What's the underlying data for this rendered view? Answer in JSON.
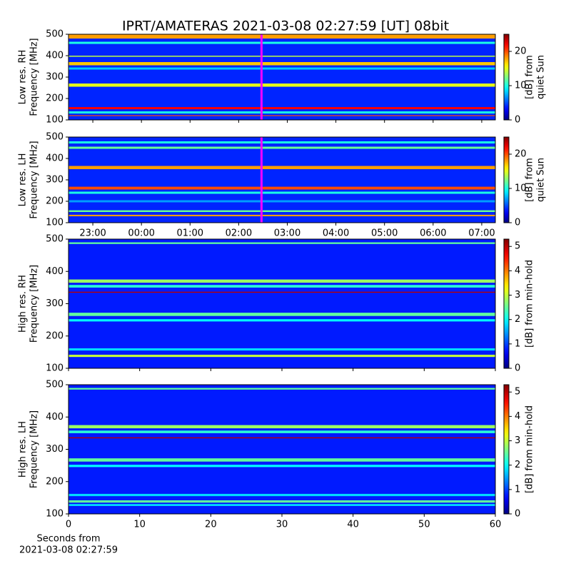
{
  "title": "IPRT/AMATERAS 2021-03-08 02:27:59 [UT]   08bit",
  "chart_data": [
    {
      "type": "heatmap",
      "ylabel": [
        "Low res. RH",
        "Frequency [MHz]"
      ],
      "ylim": [
        100,
        500
      ],
      "yticks": [
        100,
        200,
        300,
        400,
        500
      ],
      "xlim": [
        22.5,
        31.28
      ],
      "xticks": [
        23,
        24,
        25,
        26,
        27,
        28,
        29,
        30,
        31
      ],
      "marker_x": 26.47,
      "marker_color": "#ff00ff",
      "background_value": 4,
      "bands": [
        {
          "y": [
            480,
            500
          ],
          "value": 18
        },
        {
          "y": [
            455,
            465
          ],
          "value": 10
        },
        {
          "y": [
            395,
            400
          ],
          "value": 14
        },
        {
          "y": [
            355,
            370
          ],
          "value": 17
        },
        {
          "y": [
            335,
            345
          ],
          "value": 8
        },
        {
          "y": [
            255,
            270
          ],
          "value": 15
        },
        {
          "y": [
            150,
            160
          ],
          "value": 22
        },
        {
          "y": [
            130,
            140
          ],
          "value": 10
        },
        {
          "y": [
            118,
            122
          ],
          "value": 20
        }
      ],
      "clim": [
        0,
        25
      ],
      "cticks": [
        0,
        10,
        20
      ],
      "clabel": [
        "[dB] from",
        "quiet Sun"
      ]
    },
    {
      "type": "heatmap",
      "ylabel": [
        "Low res. LH",
        "Frequency [MHz]"
      ],
      "ylim": [
        100,
        500
      ],
      "yticks": [
        100,
        200,
        300,
        400,
        500
      ],
      "xlim": [
        22.5,
        31.28
      ],
      "xticks": [
        {
          "value": 23,
          "label": "23:00"
        },
        {
          "value": 24,
          "label": "00:00"
        },
        {
          "value": 25,
          "label": "01:00"
        },
        {
          "value": 26,
          "label": "02:00"
        },
        {
          "value": 27,
          "label": "03:00"
        },
        {
          "value": 28,
          "label": "04:00"
        },
        {
          "value": 29,
          "label": "05:00"
        },
        {
          "value": 30,
          "label": "06:00"
        },
        {
          "value": 31,
          "label": "07:00"
        }
      ],
      "marker_x": 26.47,
      "marker_color": "#ff00ff",
      "background_value": 4,
      "bands": [
        {
          "y": [
            470,
            480
          ],
          "value": 10
        },
        {
          "y": [
            445,
            455
          ],
          "value": 12
        },
        {
          "y": [
            350,
            365
          ],
          "value": 18
        },
        {
          "y": [
            255,
            268
          ],
          "value": 20
        },
        {
          "y": [
            235,
            245
          ],
          "value": 10
        },
        {
          "y": [
            195,
            205
          ],
          "value": 7
        },
        {
          "y": [
            150,
            158
          ],
          "value": 12
        },
        {
          "y": [
            130,
            137
          ],
          "value": 18
        }
      ],
      "clim": [
        0,
        25
      ],
      "cticks": [
        0,
        10,
        20
      ],
      "clabel": [
        "[dB] from",
        "quiet Sun"
      ]
    },
    {
      "type": "heatmap",
      "ylabel": [
        "High res. RH",
        "Frequency [MHz]"
      ],
      "ylim": [
        100,
        500
      ],
      "yticks": [
        100,
        200,
        300,
        400,
        500
      ],
      "xlim": [
        0,
        60
      ],
      "xticks": [
        0,
        10,
        20,
        30,
        40,
        50,
        60
      ],
      "background_value": 0.8,
      "bands": [
        {
          "y": [
            485,
            490
          ],
          "value": 2.5
        },
        {
          "y": [
            365,
            375
          ],
          "value": 2.8
        },
        {
          "y": [
            350,
            358
          ],
          "value": 2.2
        },
        {
          "y": [
            334,
            337
          ],
          "value": 5
        },
        {
          "y": [
            262,
            272
          ],
          "value": 2.5
        },
        {
          "y": [
            245,
            252
          ],
          "value": 2
        },
        {
          "y": [
            155,
            162
          ],
          "value": 1.8
        },
        {
          "y": [
            135,
            142
          ],
          "value": 3
        }
      ],
      "clim": [
        0,
        5.3
      ],
      "cticks": [
        0,
        1,
        2,
        3,
        4,
        5
      ],
      "clabel": [
        "[dB] from min-hold"
      ]
    },
    {
      "type": "heatmap",
      "ylabel": [
        "High res. LH",
        "Frequency [MHz]"
      ],
      "ylim": [
        100,
        500
      ],
      "yticks": [
        100,
        200,
        300,
        400,
        500
      ],
      "xlim": [
        0,
        60
      ],
      "xticks": [
        0,
        10,
        20,
        30,
        40,
        50,
        60
      ],
      "xlabel": [
        "Seconds from",
        "2021-03-08 02:27:59"
      ],
      "background_value": 0.8,
      "bands": [
        {
          "y": [
            485,
            490
          ],
          "value": 2.5
        },
        {
          "y": [
            365,
            375
          ],
          "value": 2.8
        },
        {
          "y": [
            350,
            358
          ],
          "value": 2.2
        },
        {
          "y": [
            334,
            337
          ],
          "value": 5
        },
        {
          "y": [
            262,
            272
          ],
          "value": 2.5
        },
        {
          "y": [
            245,
            252
          ],
          "value": 2
        },
        {
          "y": [
            155,
            162
          ],
          "value": 1.8
        },
        {
          "y": [
            135,
            142
          ],
          "value": 2.5
        },
        {
          "y": [
            125,
            130
          ],
          "value": 2
        }
      ],
      "clim": [
        0,
        5.3
      ],
      "cticks": [
        0,
        1,
        2,
        3,
        4,
        5
      ],
      "clabel": [
        "[dB] from min-hold"
      ]
    }
  ]
}
